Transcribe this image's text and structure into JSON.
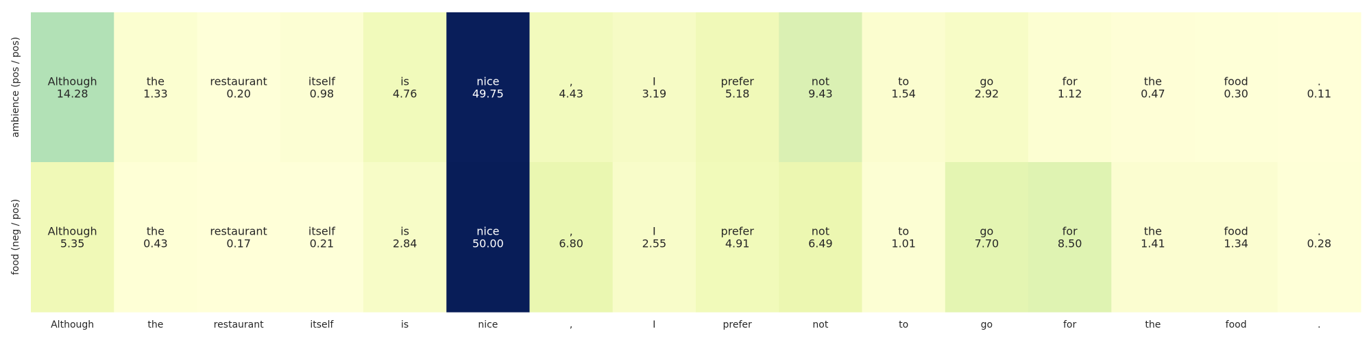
{
  "chart_data": {
    "type": "heatmap",
    "colormap": "YlGnBu",
    "vmin": 0,
    "vmax": 50,
    "grid": false,
    "legend": "none",
    "x_tick_labels": [
      "Although",
      "the",
      "restaurant",
      "itself",
      "is",
      "nice",
      ",",
      "I",
      "prefer",
      "not",
      "to",
      "go",
      "for",
      "the",
      "food",
      "."
    ],
    "rows": [
      {
        "label": "ambience (pos / pos)",
        "values": [
          14.28,
          1.33,
          0.2,
          0.98,
          4.76,
          49.75,
          4.43,
          3.19,
          5.18,
          9.43,
          1.54,
          2.92,
          1.12,
          0.47,
          0.3,
          0.11
        ],
        "value_labels": [
          "14.28",
          "1.33",
          "0.20",
          "0.98",
          "4.76",
          "49.75",
          "4.43",
          "3.19",
          "5.18",
          "9.43",
          "1.54",
          "2.92",
          "1.12",
          "0.47",
          "0.30",
          "0.11"
        ]
      },
      {
        "label": "food (neg / pos)",
        "values": [
          5.35,
          0.43,
          0.17,
          0.21,
          2.84,
          50.0,
          6.8,
          2.55,
          4.91,
          6.49,
          1.01,
          7.7,
          8.5,
          1.41,
          1.34,
          0.28
        ],
        "value_labels": [
          "5.35",
          "0.43",
          "0.17",
          "0.21",
          "2.84",
          "50.00",
          "6.80",
          "2.55",
          "4.91",
          "6.49",
          "1.01",
          "7.70",
          "8.50",
          "1.41",
          "1.34",
          "0.28"
        ]
      }
    ]
  }
}
